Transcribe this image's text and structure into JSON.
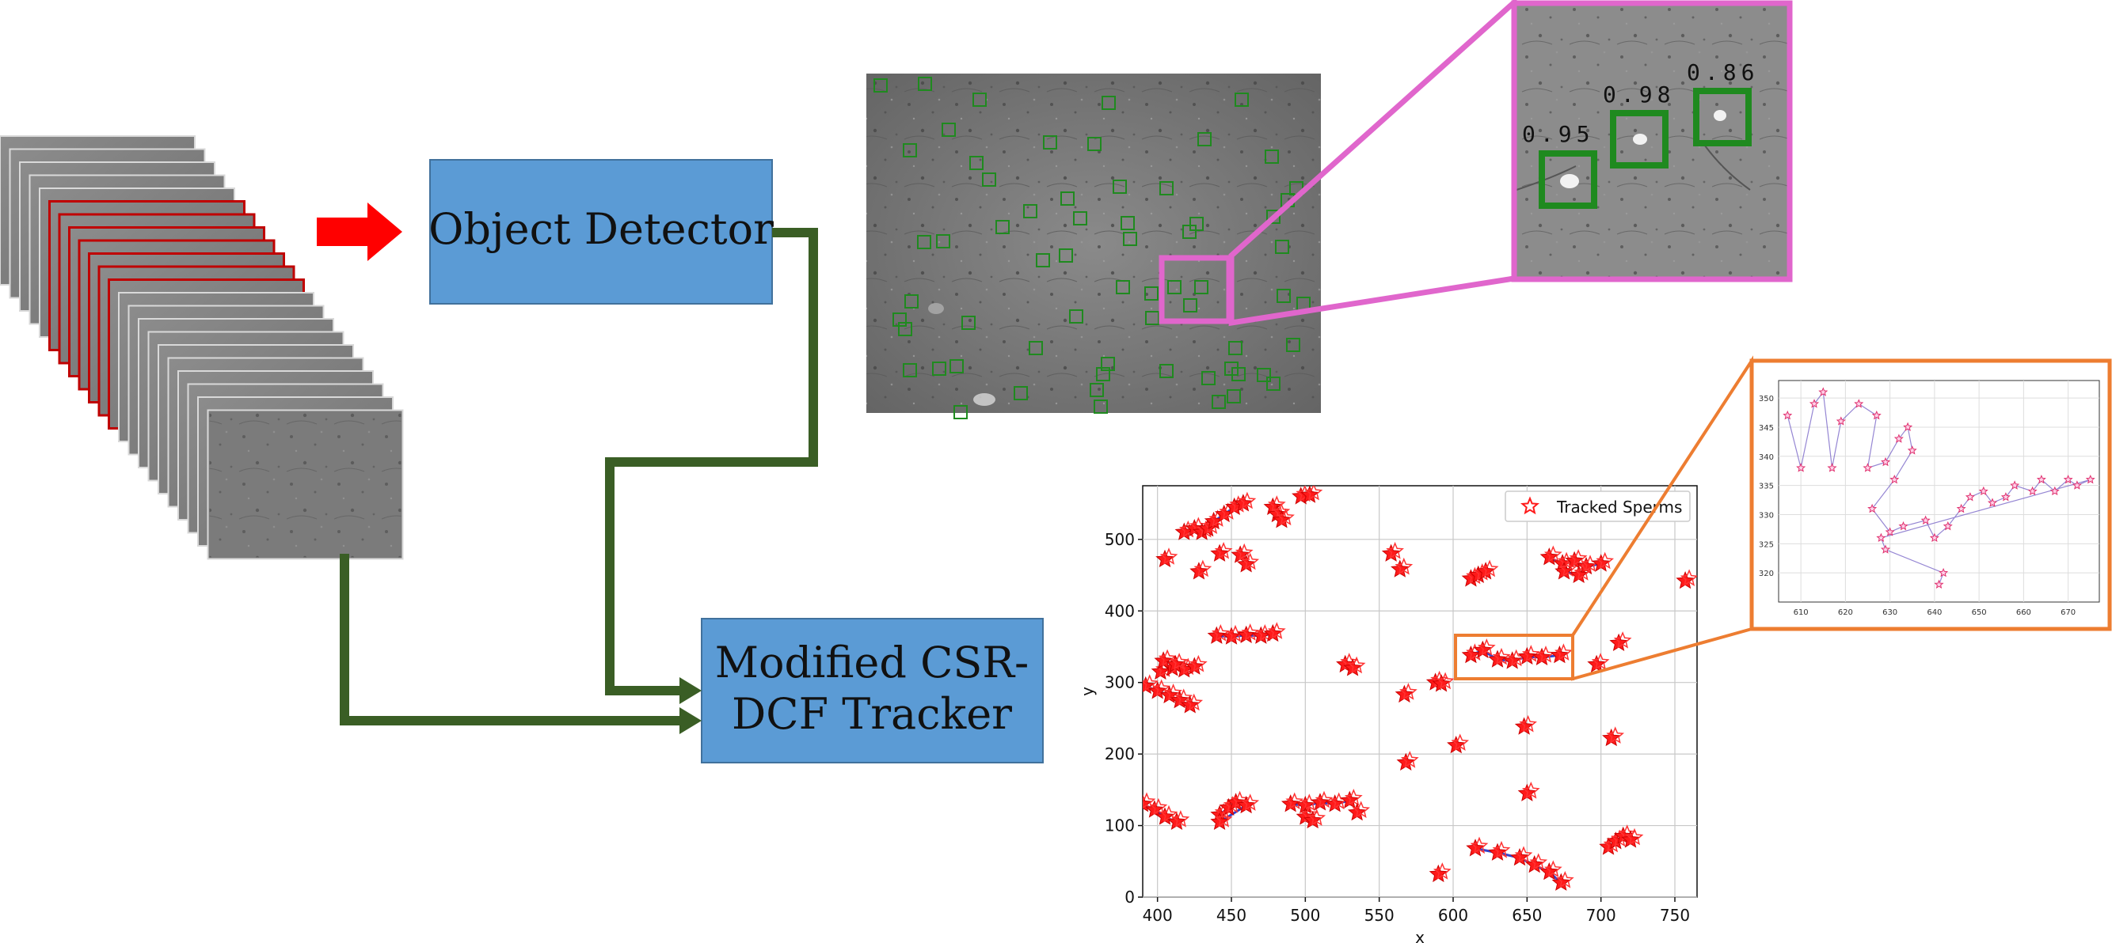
{
  "pipeline": {
    "detector_label": "Object Detector",
    "tracker_label_lines": [
      "Modified CSR-",
      "DCF Tracker"
    ]
  },
  "zoom": {
    "confidences": [
      "0.95",
      "0.98",
      "0.86"
    ]
  },
  "colors": {
    "box_fill": "#5b9bd5",
    "box_stroke": "#41719c",
    "connector": "#3a5e25",
    "input_arrow": "#ff0000",
    "zoom_frame": "#e066cc",
    "inset_frame": "#ed7d31",
    "detection_box": "#1f8a1f",
    "marker": "#ff1a1a"
  },
  "chart_data": {
    "type": "scatter",
    "xlabel": "x",
    "ylabel": "y",
    "xlim": [
      390,
      765
    ],
    "ylim": [
      0,
      575
    ],
    "xticks": [
      400,
      450,
      500,
      550,
      600,
      650,
      700,
      750
    ],
    "yticks": [
      0,
      100,
      200,
      300,
      400,
      500
    ],
    "grid": true,
    "legend": {
      "label": "Tracked Sperms",
      "position": "top-right"
    },
    "tracks": [
      {
        "points": [
          [
            418,
            510
          ],
          [
            425,
            515
          ],
          [
            430,
            510
          ],
          [
            434,
            515
          ]
        ]
      },
      {
        "points": [
          [
            438,
            525
          ],
          [
            445,
            535
          ],
          [
            452,
            545
          ],
          [
            458,
            550
          ]
        ]
      },
      {
        "points": [
          [
            405,
            472
          ]
        ]
      },
      {
        "points": [
          [
            428,
            455
          ]
        ]
      },
      {
        "points": [
          [
            442,
            480
          ]
        ]
      },
      {
        "points": [
          [
            456,
            478
          ],
          [
            460,
            465
          ]
        ]
      },
      {
        "points": [
          [
            478,
            545
          ],
          [
            481,
            535
          ],
          [
            484,
            527
          ]
        ]
      },
      {
        "points": [
          [
            497,
            560
          ],
          [
            503,
            562
          ]
        ]
      },
      {
        "points": [
          [
            558,
            480
          ]
        ]
      },
      {
        "points": [
          [
            564,
            458
          ]
        ]
      },
      {
        "points": [
          [
            612,
            445
          ],
          [
            617,
            450
          ],
          [
            622,
            455
          ]
        ]
      },
      {
        "points": [
          [
            665,
            475
          ],
          [
            674,
            466
          ],
          [
            682,
            470
          ],
          [
            690,
            462
          ],
          [
            700,
            466
          ]
        ]
      },
      {
        "points": [
          [
            675,
            455
          ],
          [
            685,
            450
          ]
        ]
      },
      {
        "points": [
          [
            757,
            442
          ]
        ]
      },
      {
        "points": [
          [
            440,
            365
          ],
          [
            450,
            364
          ],
          [
            460,
            366
          ],
          [
            470,
            365
          ],
          [
            478,
            368
          ]
        ]
      },
      {
        "points": [
          [
            402,
            315
          ],
          [
            410,
            320
          ],
          [
            418,
            318
          ],
          [
            425,
            322
          ]
        ]
      },
      {
        "points": [
          [
            404,
            330
          ],
          [
            412,
            325
          ]
        ]
      },
      {
        "points": [
          [
            392,
            295
          ],
          [
            400,
            288
          ],
          [
            408,
            282
          ],
          [
            415,
            275
          ],
          [
            422,
            268
          ]
        ]
      },
      {
        "points": [
          [
            527,
            325
          ],
          [
            532,
            320
          ]
        ]
      },
      {
        "points": [
          [
            567,
            283
          ]
        ]
      },
      {
        "points": [
          [
            588,
            300
          ],
          [
            592,
            298
          ]
        ]
      },
      {
        "points": [
          [
            612,
            338
          ],
          [
            620,
            345
          ],
          [
            630,
            332
          ],
          [
            640,
            330
          ],
          [
            650,
            336
          ],
          [
            660,
            335
          ],
          [
            672,
            338
          ]
        ]
      },
      {
        "points": [
          [
            697,
            325
          ]
        ]
      },
      {
        "points": [
          [
            712,
            355
          ]
        ]
      },
      {
        "points": [
          [
            602,
            212
          ]
        ]
      },
      {
        "points": [
          [
            707,
            222
          ]
        ]
      },
      {
        "points": [
          [
            648,
            238
          ]
        ]
      },
      {
        "points": [
          [
            568,
            188
          ]
        ]
      },
      {
        "points": [
          [
            390,
            130
          ],
          [
            398,
            122
          ],
          [
            405,
            112
          ],
          [
            413,
            105
          ]
        ]
      },
      {
        "points": [
          [
            442,
            115
          ],
          [
            448,
            125
          ],
          [
            453,
            132
          ],
          [
            460,
            128
          ],
          [
            442,
            105
          ]
        ]
      },
      {
        "points": [
          [
            490,
            130
          ],
          [
            500,
            128
          ],
          [
            510,
            132
          ],
          [
            520,
            130
          ],
          [
            530,
            135
          ]
        ]
      },
      {
        "points": [
          [
            500,
            112
          ],
          [
            505,
            107
          ]
        ]
      },
      {
        "points": [
          [
            535,
            118
          ]
        ]
      },
      {
        "points": [
          [
            650,
            145
          ]
        ]
      },
      {
        "points": [
          [
            590,
            32
          ]
        ]
      },
      {
        "points": [
          [
            615,
            68
          ],
          [
            630,
            62
          ],
          [
            645,
            55
          ],
          [
            655,
            45
          ],
          [
            665,
            35
          ],
          [
            673,
            20
          ]
        ]
      },
      {
        "points": [
          [
            705,
            70
          ],
          [
            710,
            78
          ],
          [
            715,
            85
          ],
          [
            720,
            80
          ]
        ]
      }
    ],
    "inset": {
      "type": "line",
      "xlim": [
        605,
        677
      ],
      "ylim": [
        315,
        353
      ],
      "xticks": [
        610,
        620,
        630,
        640,
        650,
        660,
        670
      ],
      "yticks": [
        320,
        325,
        330,
        335,
        340,
        345,
        350
      ],
      "points": [
        [
          607,
          347
        ],
        [
          610,
          338
        ],
        [
          613,
          349
        ],
        [
          615,
          351
        ],
        [
          617,
          338
        ],
        [
          619,
          346
        ],
        [
          623,
          349
        ],
        [
          627,
          347
        ],
        [
          625,
          338
        ],
        [
          629,
          339
        ],
        [
          632,
          343
        ],
        [
          634,
          345
        ],
        [
          635,
          341
        ],
        [
          631,
          336
        ],
        [
          626,
          331
        ],
        [
          630,
          327
        ],
        [
          633,
          328
        ],
        [
          638,
          329
        ],
        [
          640,
          326
        ],
        [
          643,
          328
        ],
        [
          646,
          331
        ],
        [
          648,
          333
        ],
        [
          651,
          334
        ],
        [
          653,
          332
        ],
        [
          656,
          333
        ],
        [
          658,
          335
        ],
        [
          662,
          334
        ],
        [
          664,
          336
        ],
        [
          667,
          334
        ],
        [
          670,
          336
        ],
        [
          672,
          335
        ],
        [
          675,
          336
        ],
        [
          628,
          326
        ],
        [
          629,
          324
        ],
        [
          642,
          320
        ],
        [
          641,
          318
        ]
      ]
    }
  }
}
